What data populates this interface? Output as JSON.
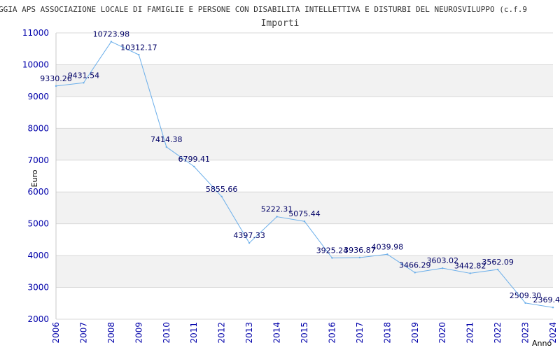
{
  "chart_data": {
    "type": "line",
    "title": "GGIA APS ASSOCIAZIONE LOCALE DI FAMIGLIE E PERSONE CON DISABILITA INTELLETTIVA E DISTURBI DEL NEUROSVILUPPO (c.f.9",
    "subtitle": "Importi",
    "xlabel": "Anno",
    "ylabel": "Euro",
    "x": [
      "2006",
      "2007",
      "2008",
      "2009",
      "2010",
      "2011",
      "2012",
      "2013",
      "2014",
      "2015",
      "2016",
      "2017",
      "2018",
      "2019",
      "2020",
      "2021",
      "2022",
      "2023",
      "2024"
    ],
    "series": [
      {
        "values": [
          9330.26,
          9431.54,
          10723.98,
          10312.17,
          7414.38,
          6799.41,
          5855.66,
          4397.33,
          5222.31,
          5075.44,
          3925.24,
          3936.87,
          4039.98,
          3466.29,
          3603.02,
          3442.82,
          3562.09,
          2509.3,
          2369.4
        ]
      }
    ],
    "data_labels": [
      "9330.26",
      "9431.54",
      "10723.98",
      "10312.17",
      "7414.38",
      "6799.41",
      "5855.66",
      "4397.33",
      "5222.31",
      "5075.44",
      "3925.24",
      "3936.87",
      "4039.98",
      "3466.29",
      "3603.02",
      "3442.82",
      "3562.09",
      "2509.30",
      "2369.4"
    ],
    "yticks": [
      2000,
      3000,
      4000,
      5000,
      6000,
      7000,
      8000,
      9000,
      10000,
      11000
    ],
    "ylim": [
      2000,
      11000
    ],
    "grid": true,
    "legend": "none",
    "colors": {
      "line": "#6aaeea",
      "band_alt": "#f2f2f2",
      "grid": "#d8d8d8",
      "tick_text": "#0000aa",
      "label_text": "#000066"
    }
  }
}
